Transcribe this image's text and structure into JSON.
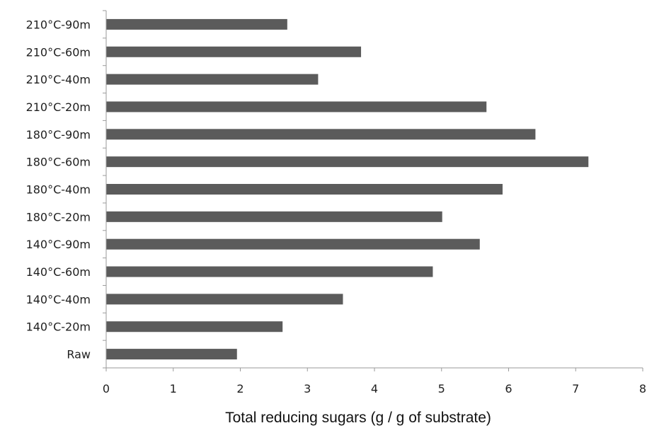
{
  "chart_data": {
    "type": "bar",
    "orientation": "horizontal",
    "categories": [
      "Raw",
      "140°C-20m",
      "140°C-40m",
      "140°C-60m",
      "140°C-90m",
      "180°C-20m",
      "180°C-40m",
      "180°C-60m",
      "180°C-90m",
      "210°C-20m",
      "210°C-40m",
      "210°C-60m",
      "210°C-90m"
    ],
    "values": [
      1.95,
      2.63,
      3.53,
      4.87,
      5.57,
      5.01,
      5.91,
      7.19,
      6.4,
      5.67,
      3.16,
      3.8,
      2.7
    ],
    "xlabel": "Total reducing sugars (g / g of substrate)",
    "ylabel": "",
    "xlim": [
      0,
      8
    ],
    "xticks": [
      "0",
      "1",
      "2",
      "3",
      "4",
      "5",
      "6",
      "7",
      "8"
    ],
    "grid": false,
    "legend": "none",
    "bar_color": "#5b5b5b",
    "axis_color": "#9a9a9a"
  }
}
